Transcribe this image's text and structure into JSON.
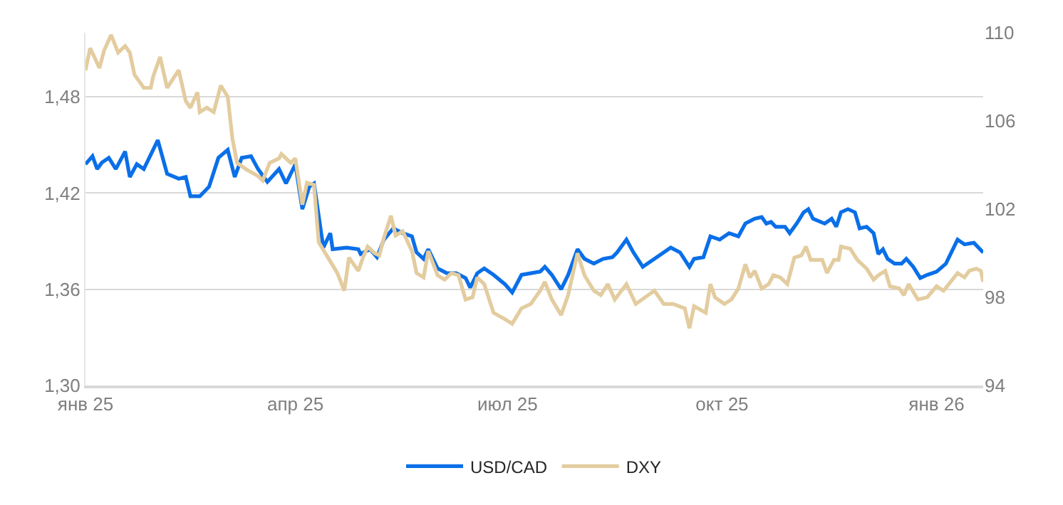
{
  "chart_data": {
    "type": "line",
    "legend": "bottom",
    "grid": "y",
    "marker": "none",
    "line_style": "solid",
    "xlim": [
      "2025-01-01",
      "2026-01-21"
    ],
    "xticks": [
      {
        "value": "2025-01-01",
        "label": "янв 25"
      },
      {
        "value": "2025-04-01",
        "label": "апр 25"
      },
      {
        "value": "2025-07-01",
        "label": "июл 25"
      },
      {
        "value": "2025-10-01",
        "label": "окт 25"
      },
      {
        "value": "2026-01-01",
        "label": "янв 26"
      }
    ],
    "ylim": [
      1.3,
      1.52
    ],
    "yticks": [
      {
        "value": 1.3,
        "label": "1,30"
      },
      {
        "value": 1.36,
        "label": "1,36"
      },
      {
        "value": 1.42,
        "label": "1,42"
      },
      {
        "value": 1.48,
        "label": "1,48"
      }
    ],
    "y2lim": [
      94,
      110
    ],
    "y2ticks": [
      94,
      98,
      102,
      106,
      110
    ],
    "series": [
      {
        "name": "USD/CAD",
        "color": "#0a6fe8",
        "x": [
          "2025-01-01",
          "2025-01-04",
          "2025-01-06",
          "2025-01-08",
          "2025-01-11",
          "2025-01-14",
          "2025-01-18",
          "2025-01-20",
          "2025-01-23",
          "2025-01-26",
          "2025-02-01",
          "2025-02-05",
          "2025-02-10",
          "2025-02-13",
          "2025-02-15",
          "2025-02-19",
          "2025-02-21",
          "2025-02-23",
          "2025-02-27",
          "2025-03-03",
          "2025-03-06",
          "2025-03-09",
          "2025-03-13",
          "2025-03-16",
          "2025-03-20",
          "2025-03-25",
          "2025-03-28",
          "2025-04-01",
          "2025-04-04",
          "2025-04-07",
          "2025-04-09",
          "2025-04-13",
          "2025-04-16",
          "2025-04-17",
          "2025-04-23",
          "2025-04-28",
          "2025-04-29",
          "2025-05-03",
          "2025-05-06",
          "2025-05-09",
          "2025-05-13",
          "2025-05-17",
          "2025-05-21",
          "2025-05-23",
          "2025-05-26",
          "2025-05-28",
          "2025-06-01",
          "2025-06-05",
          "2025-06-09",
          "2025-06-13",
          "2025-06-15",
          "2025-06-18",
          "2025-06-21",
          "2025-06-25",
          "2025-06-30",
          "2025-07-03",
          "2025-07-07",
          "2025-07-11",
          "2025-07-15",
          "2025-07-17",
          "2025-07-20",
          "2025-07-24",
          "2025-07-27",
          "2025-07-31",
          "2025-08-03",
          "2025-08-07",
          "2025-08-11",
          "2025-08-15",
          "2025-08-17",
          "2025-08-21",
          "2025-08-24",
          "2025-08-28",
          "2025-09-02",
          "2025-09-05",
          "2025-09-09",
          "2025-09-13",
          "2025-09-17",
          "2025-09-19",
          "2025-09-23",
          "2025-09-26",
          "2025-09-30",
          "2025-10-04",
          "2025-10-08",
          "2025-10-11",
          "2025-10-15",
          "2025-10-18",
          "2025-10-20",
          "2025-10-22",
          "2025-10-24",
          "2025-10-28",
          "2025-10-30",
          "2025-11-02",
          "2025-11-05",
          "2025-11-07",
          "2025-11-09",
          "2025-11-14",
          "2025-11-17",
          "2025-11-19",
          "2025-11-21",
          "2025-11-24",
          "2025-11-27",
          "2025-11-29",
          "2025-12-02",
          "2025-12-05",
          "2025-12-07",
          "2025-12-09",
          "2025-12-11",
          "2025-12-14",
          "2025-12-17",
          "2025-12-19",
          "2025-12-22",
          "2025-12-25",
          "2025-12-28",
          "2026-01-01",
          "2026-01-05",
          "2026-01-08",
          "2026-01-10",
          "2026-01-13",
          "2026-01-17",
          "2026-01-21"
        ],
        "values": [
          1.438,
          1.443,
          1.435,
          1.439,
          1.442,
          1.435,
          1.446,
          1.43,
          1.438,
          1.435,
          1.453,
          1.432,
          1.429,
          1.43,
          1.418,
          1.418,
          1.421,
          1.424,
          1.442,
          1.447,
          1.43,
          1.442,
          1.443,
          1.435,
          1.427,
          1.435,
          1.426,
          1.438,
          1.41,
          1.424,
          1.426,
          1.386,
          1.395,
          1.385,
          1.386,
          1.385,
          1.382,
          1.385,
          1.38,
          1.391,
          1.398,
          1.395,
          1.393,
          1.383,
          1.379,
          1.385,
          1.373,
          1.37,
          1.37,
          1.367,
          1.361,
          1.37,
          1.373,
          1.369,
          1.363,
          1.358,
          1.369,
          1.37,
          1.371,
          1.374,
          1.369,
          1.36,
          1.369,
          1.385,
          1.379,
          1.376,
          1.379,
          1.38,
          1.383,
          1.391,
          1.383,
          1.374,
          1.379,
          1.382,
          1.386,
          1.383,
          1.374,
          1.379,
          1.38,
          1.393,
          1.391,
          1.395,
          1.393,
          1.401,
          1.404,
          1.405,
          1.401,
          1.402,
          1.399,
          1.399,
          1.395,
          1.401,
          1.408,
          1.41,
          1.404,
          1.401,
          1.404,
          1.399,
          1.408,
          1.41,
          1.408,
          1.398,
          1.399,
          1.395,
          1.382,
          1.385,
          1.379,
          1.376,
          1.376,
          1.379,
          1.374,
          1.367,
          1.369,
          1.371,
          1.376,
          1.385,
          1.391,
          1.388,
          1.389,
          1.383
        ]
      },
      {
        "name": "DXY",
        "color": "#e3cc9f",
        "axis": "y2",
        "x": [
          "2025-01-01",
          "2025-01-03",
          "2025-01-07",
          "2025-01-09",
          "2025-01-12",
          "2025-01-15",
          "2025-01-18",
          "2025-01-20",
          "2025-01-22",
          "2025-01-26",
          "2025-01-29",
          "2025-01-30",
          "2025-02-02",
          "2025-02-05",
          "2025-02-10",
          "2025-02-13",
          "2025-02-15",
          "2025-02-18",
          "2025-02-19",
          "2025-02-22",
          "2025-02-25",
          "2025-02-28",
          "2025-03-03",
          "2025-03-05",
          "2025-03-07",
          "2025-03-11",
          "2025-03-16",
          "2025-03-18",
          "2025-03-21",
          "2025-03-25",
          "2025-03-26",
          "2025-03-30",
          "2025-04-01",
          "2025-04-04",
          "2025-04-06",
          "2025-04-09",
          "2025-04-11",
          "2025-04-15",
          "2025-04-19",
          "2025-04-22",
          "2025-04-24",
          "2025-04-28",
          "2025-04-30",
          "2025-05-02",
          "2025-05-05",
          "2025-05-07",
          "2025-05-09",
          "2025-05-12",
          "2025-05-14",
          "2025-05-17",
          "2025-05-21",
          "2025-05-23",
          "2025-05-26",
          "2025-05-28",
          "2025-06-01",
          "2025-06-04",
          "2025-06-07",
          "2025-06-10",
          "2025-06-13",
          "2025-06-16",
          "2025-06-18",
          "2025-06-21",
          "2025-06-25",
          "2025-06-30",
          "2025-07-03",
          "2025-07-07",
          "2025-07-11",
          "2025-07-15",
          "2025-07-17",
          "2025-07-20",
          "2025-07-24",
          "2025-07-27",
          "2025-07-31",
          "2025-08-03",
          "2025-08-07",
          "2025-08-10",
          "2025-08-13",
          "2025-08-16",
          "2025-08-21",
          "2025-08-25",
          "2025-08-29",
          "2025-09-02",
          "2025-09-06",
          "2025-09-10",
          "2025-09-15",
          "2025-09-17",
          "2025-09-19",
          "2025-09-24",
          "2025-09-26",
          "2025-09-28",
          "2025-10-02",
          "2025-10-05",
          "2025-10-08",
          "2025-10-11",
          "2025-10-13",
          "2025-10-15",
          "2025-10-18",
          "2025-10-21",
          "2025-10-23",
          "2025-10-26",
          "2025-10-29",
          "2025-11-01",
          "2025-11-04",
          "2025-11-06",
          "2025-11-08",
          "2025-11-13",
          "2025-11-15",
          "2025-11-18",
          "2025-11-20",
          "2025-11-21",
          "2025-11-25",
          "2025-11-28",
          "2025-12-02",
          "2025-12-05",
          "2025-12-07",
          "2025-12-10",
          "2025-12-12",
          "2025-12-16",
          "2025-12-18",
          "2025-12-20",
          "2025-12-24",
          "2025-12-28",
          "2026-01-01",
          "2026-01-04",
          "2026-01-07",
          "2026-01-10",
          "2026-01-13",
          "2026-01-15",
          "2026-01-18",
          "2026-01-20",
          "2026-01-21"
        ],
        "values": [
          108.3,
          109.3,
          108.4,
          109.2,
          109.9,
          109.1,
          109.4,
          109.1,
          108.1,
          107.5,
          107.5,
          108.0,
          108.9,
          107.5,
          108.3,
          106.9,
          106.6,
          107.3,
          106.4,
          106.6,
          106.4,
          107.6,
          107.1,
          105.2,
          104.1,
          103.8,
          103.5,
          103.3,
          104.1,
          104.3,
          104.5,
          104.1,
          104.3,
          102.2,
          103.2,
          103.1,
          100.5,
          99.8,
          99.1,
          98.3,
          99.8,
          99.2,
          99.8,
          100.3,
          100.0,
          99.9,
          100.7,
          101.7,
          100.8,
          101.0,
          100.1,
          99.1,
          98.9,
          100.1,
          99.0,
          98.8,
          99.1,
          99.0,
          97.9,
          98.0,
          98.9,
          98.6,
          97.3,
          97.0,
          96.8,
          97.5,
          97.7,
          98.3,
          98.7,
          97.9,
          97.2,
          98.1,
          100.0,
          99.0,
          98.3,
          98.1,
          98.6,
          97.9,
          98.6,
          97.7,
          98.0,
          98.3,
          97.7,
          97.7,
          97.5,
          96.6,
          97.6,
          97.3,
          98.6,
          98.0,
          97.7,
          97.9,
          98.4,
          99.5,
          98.9,
          99.2,
          98.4,
          98.6,
          99.0,
          98.9,
          98.6,
          99.8,
          99.9,
          100.3,
          99.7,
          99.7,
          99.1,
          99.7,
          99.7,
          100.3,
          100.2,
          99.7,
          99.3,
          98.8,
          99.0,
          99.2,
          98.5,
          98.4,
          98.1,
          98.6,
          97.9,
          98.0,
          98.5,
          98.3,
          98.7,
          99.1,
          98.9,
          99.2,
          99.3,
          99.2,
          98.7
        ]
      }
    ]
  }
}
